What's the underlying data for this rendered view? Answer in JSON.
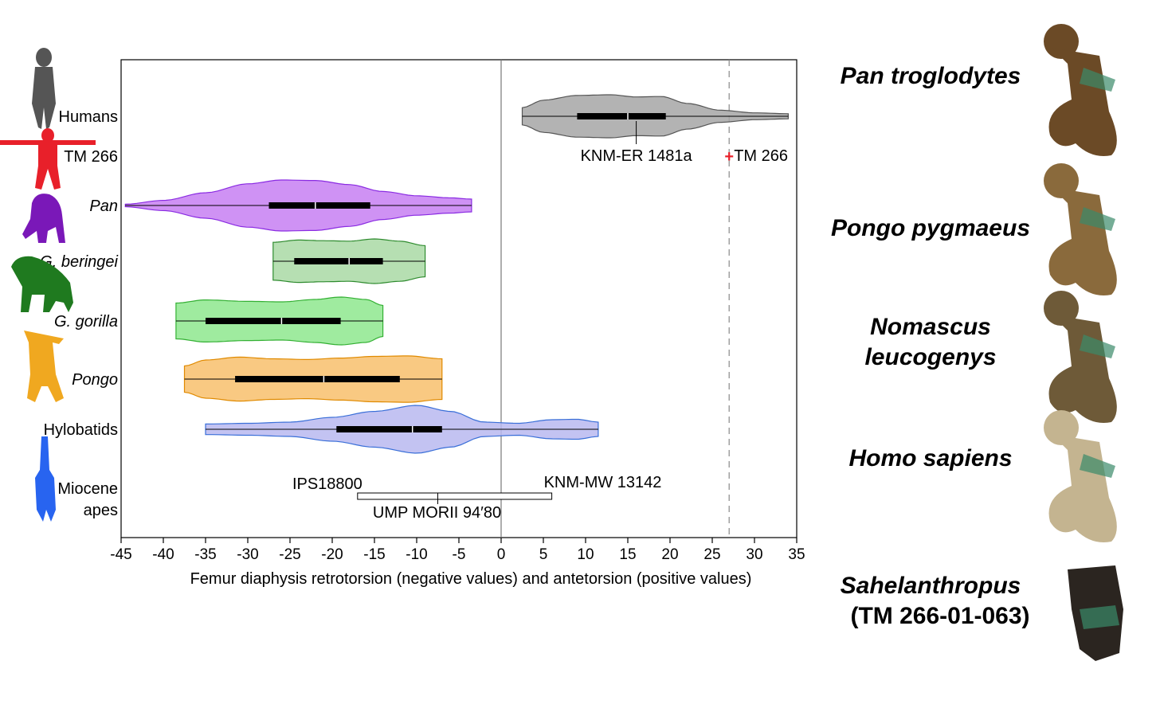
{
  "chart_data": {
    "type": "violin",
    "title": "",
    "xlabel": "Femur diaphysis retrotorsion (negative values) and antetorsion (positive values)",
    "ylabel": "",
    "xlim": [
      -45,
      35
    ],
    "xticks": [
      -45,
      -40,
      -35,
      -30,
      -25,
      -20,
      -15,
      -10,
      -5,
      0,
      5,
      10,
      15,
      20,
      25,
      30,
      35
    ],
    "grid": false,
    "groups": [
      {
        "label": "Humans",
        "italic": false,
        "color": "#a6a6a6",
        "edge": "#555555",
        "min": 2.5,
        "q1": 9,
        "median": 15,
        "q3": 19.5,
        "max": 34,
        "width": [
          [
            2.5,
            0.4
          ],
          [
            5,
            0.75
          ],
          [
            9,
            0.97
          ],
          [
            13,
            1.0
          ],
          [
            16,
            0.9
          ],
          [
            19,
            0.92
          ],
          [
            22,
            0.6
          ],
          [
            26,
            0.28
          ],
          [
            30,
            0.16
          ],
          [
            34,
            0.12
          ]
        ]
      },
      {
        "label": "TM 266",
        "italic": false,
        "color": "#e8202a",
        "edge": "#e8202a",
        "single": true
      },
      {
        "label": "Pan",
        "italic": true,
        "color": "#c77ff2",
        "edge": "#8a2be2",
        "min": -44.5,
        "q1": -27.5,
        "median": -22,
        "q3": -15.5,
        "max": -3.5,
        "width": [
          [
            -44.5,
            0.05
          ],
          [
            -40,
            0.2
          ],
          [
            -35,
            0.5
          ],
          [
            -30,
            0.85
          ],
          [
            -26,
            1.0
          ],
          [
            -22,
            0.98
          ],
          [
            -18,
            0.82
          ],
          [
            -14,
            0.55
          ],
          [
            -10,
            0.38
          ],
          [
            -6,
            0.3
          ],
          [
            -3.5,
            0.25
          ]
        ]
      },
      {
        "label": "G. beringei",
        "italic": true,
        "color": "#a9d9a4",
        "edge": "#2e8b2e",
        "min": -27,
        "q1": -24.5,
        "median": -18,
        "q3": -14,
        "max": -9,
        "width": [
          [
            -27,
            0.85
          ],
          [
            -24,
            0.95
          ],
          [
            -21,
            0.92
          ],
          [
            -18,
            0.9
          ],
          [
            -15,
            1.0
          ],
          [
            -12,
            0.9
          ],
          [
            -9,
            0.7
          ]
        ]
      },
      {
        "label": "G. gorilla",
        "italic": true,
        "color": "#8ee88e",
        "edge": "#33b033",
        "min": -38.5,
        "q1": -35,
        "median": -26,
        "q3": -19,
        "max": -14,
        "width": [
          [
            -38.5,
            0.75
          ],
          [
            -35,
            0.88
          ],
          [
            -30,
            0.82
          ],
          [
            -26,
            0.8
          ],
          [
            -22,
            0.9
          ],
          [
            -19,
            1.0
          ],
          [
            -16,
            0.9
          ],
          [
            -14,
            0.65
          ]
        ]
      },
      {
        "label": "Pongo",
        "italic": true,
        "color": "#f8c06c",
        "edge": "#e08a00",
        "min": -37.5,
        "q1": -31.5,
        "median": -21,
        "q3": -12,
        "max": -7,
        "width": [
          [
            -37.5,
            0.55
          ],
          [
            -35,
            0.8
          ],
          [
            -31,
            0.92
          ],
          [
            -27,
            0.85
          ],
          [
            -23,
            0.82
          ],
          [
            -19,
            0.88
          ],
          [
            -15,
            0.95
          ],
          [
            -11,
            0.97
          ],
          [
            -7,
            0.85
          ]
        ]
      },
      {
        "label": "Hylobatids",
        "italic": false,
        "color": "#b8b8f0",
        "edge": "#3a6fd8",
        "min": -35,
        "q1": -19.5,
        "median": -10.5,
        "q3": -7,
        "max": 11.5,
        "width": [
          [
            -35,
            0.22
          ],
          [
            -30,
            0.25
          ],
          [
            -25,
            0.3
          ],
          [
            -20,
            0.5
          ],
          [
            -15,
            0.75
          ],
          [
            -10,
            1.0
          ],
          [
            -6,
            0.75
          ],
          [
            -2,
            0.3
          ],
          [
            2,
            0.25
          ],
          [
            6,
            0.4
          ],
          [
            9,
            0.42
          ],
          [
            11.5,
            0.3
          ]
        ]
      },
      {
        "label": "Miocene\napes",
        "italic": false,
        "color": "#2864f0",
        "edge": "#000000",
        "range": true
      }
    ],
    "annotations": [
      {
        "text": "KNM-ER 1481a",
        "x": 16
      },
      {
        "text": "TM 266",
        "x": 27
      },
      {
        "text": "IPS18800",
        "x": -17
      },
      {
        "text": "KNM-MW 13142",
        "x": 6
      },
      {
        "text": "UMP MORII 94′80",
        "x": -7.5
      }
    ],
    "reference_lines": [
      {
        "x": 0,
        "style": "solid"
      },
      {
        "x": 27,
        "style": "dashed"
      }
    ],
    "miocene_range": {
      "min": -17,
      "mid": -7.5,
      "max": 6
    },
    "tm266_value": 27
  },
  "species_panel": [
    {
      "name": "Pan troglodytes",
      "italic": true
    },
    {
      "name": "Pongo pygmaeus",
      "italic": true
    },
    {
      "name": "Nomascus\nleucogenys",
      "italic": true
    },
    {
      "name": "Homo sapiens",
      "italic": true
    },
    {
      "name": "Sahelanthropus",
      "italic": true,
      "sub": "(TM 266-01-063)"
    }
  ]
}
